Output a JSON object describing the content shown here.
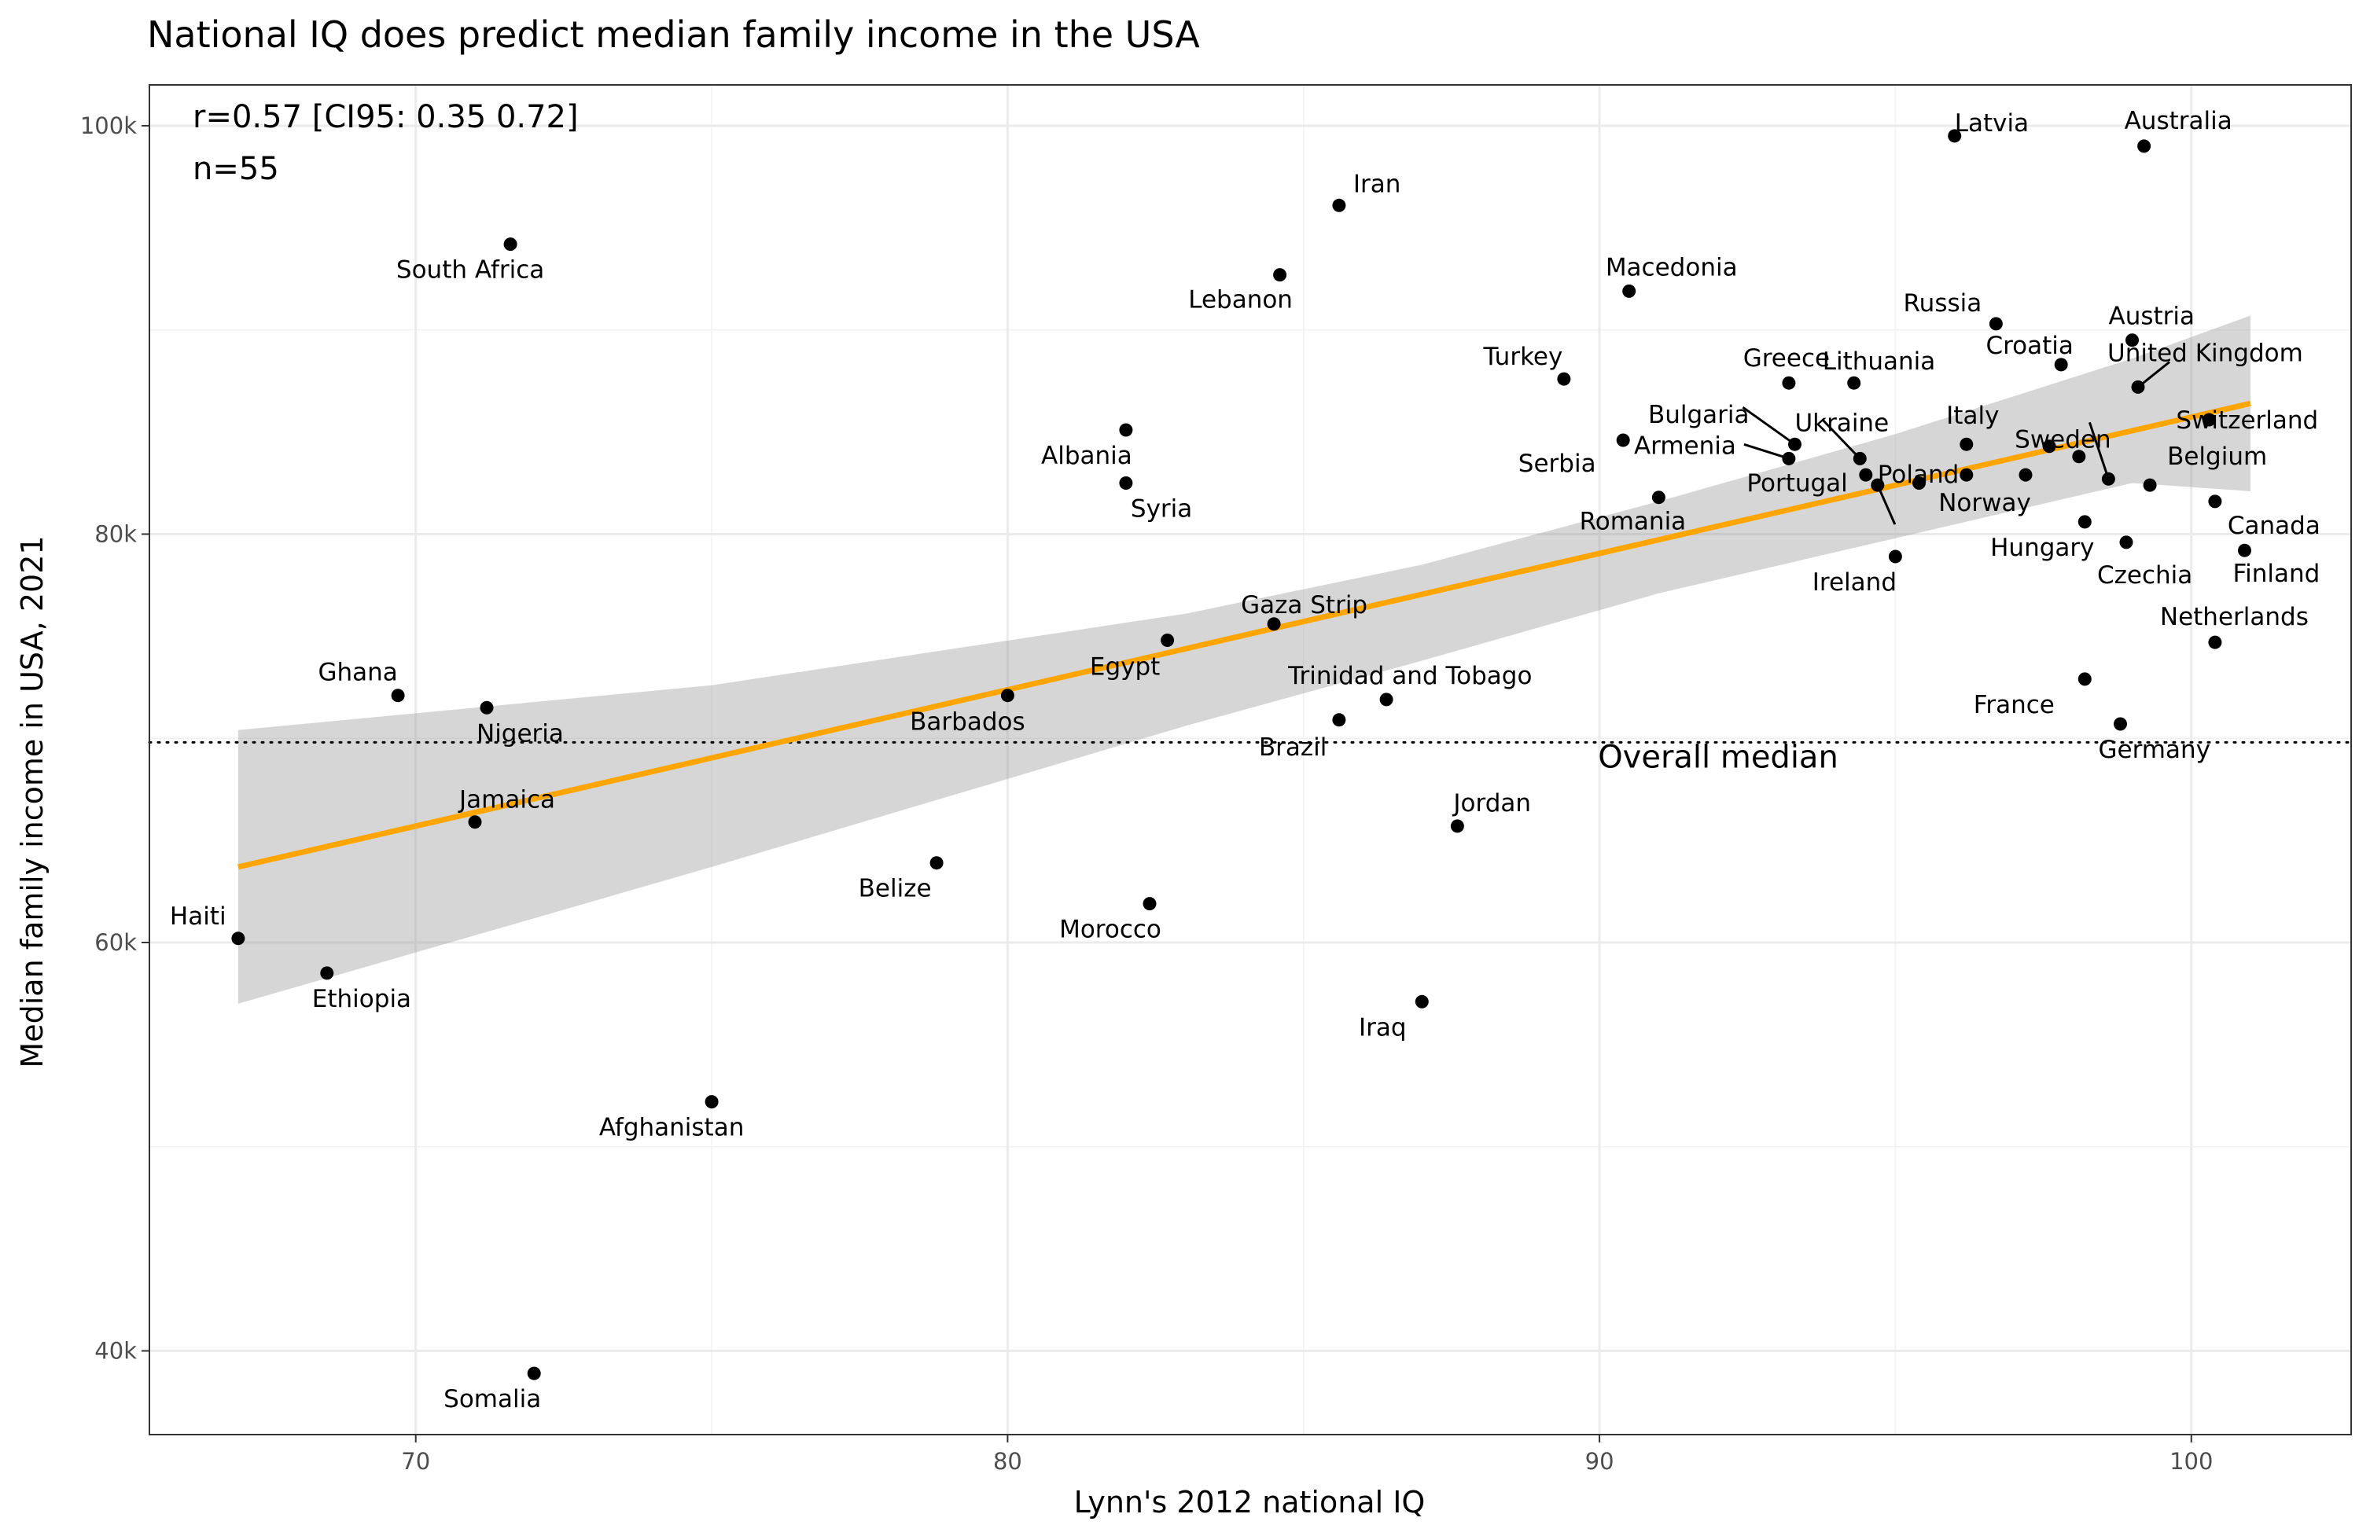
{
  "chart_data": {
    "type": "scatter",
    "title": "National IQ does predict median family income in the USA",
    "xlabel": "Lynn's 2012 national IQ",
    "ylabel": "Median family income in USA, 2021",
    "xlim": [
      65.5,
      102.7
    ],
    "ylim": [
      35900,
      102000
    ],
    "x_ticks": [
      70,
      80,
      90,
      100
    ],
    "x_tick_labels": [
      "70",
      "80",
      "90",
      "100"
    ],
    "y_ticks": [
      40000,
      60000,
      80000,
      100000
    ],
    "y_tick_labels": [
      "40k",
      "60k",
      "80k",
      "100k"
    ],
    "grid": true,
    "legend": "none",
    "annotations": [
      "r=0.57 [CI95: 0.35 0.72]",
      "n=55"
    ],
    "reference_line": {
      "y": 69800,
      "label": "Overall median",
      "style": "dotted"
    },
    "trend_line": {
      "x0": 67,
      "y0": 63700,
      "x1": 101,
      "y1": 86400,
      "color": "#FFA500"
    },
    "confidence_band": {
      "x": [
        67,
        75,
        83,
        87,
        91,
        95,
        99,
        101
      ],
      "upper": [
        70400,
        72600,
        76100,
        78500,
        81600,
        84900,
        88600,
        90700
      ],
      "lower": [
        57000,
        63700,
        70600,
        73800,
        77100,
        79800,
        82500,
        82100
      ],
      "color": "#999999"
    },
    "point_color": "#000000",
    "points": [
      {
        "name": "Latvia",
        "x": 96.0,
        "y": 99500
      },
      {
        "name": "Australia",
        "x": 99.2,
        "y": 99000
      },
      {
        "name": "Iran",
        "x": 85.6,
        "y": 96100
      },
      {
        "name": "South Africa",
        "x": 71.6,
        "y": 94200
      },
      {
        "name": "Lebanon",
        "x": 84.6,
        "y": 92700
      },
      {
        "name": "Macedonia",
        "x": 90.5,
        "y": 91900
      },
      {
        "name": "Russia",
        "x": 96.7,
        "y": 90300
      },
      {
        "name": "Austria",
        "x": 99.0,
        "y": 89500
      },
      {
        "name": "Croatia",
        "x": 97.8,
        "y": 88300
      },
      {
        "name": "Turkey",
        "x": 89.4,
        "y": 87600
      },
      {
        "name": "Greece",
        "x": 93.2,
        "y": 87400
      },
      {
        "name": "Lithuania",
        "x": 94.3,
        "y": 87400
      },
      {
        "name": "United Kingdom",
        "x": 99.1,
        "y": 87200
      },
      {
        "name": "Switzerland",
        "x": 100.3,
        "y": 85600
      },
      {
        "name": "Albania",
        "x": 82.0,
        "y": 85100
      },
      {
        "name": "Serbia",
        "x": 90.4,
        "y": 84600
      },
      {
        "name": "Bulgaria",
        "x": 93.3,
        "y": 84400
      },
      {
        "name": "Italy",
        "x": 96.2,
        "y": 84400
      },
      {
        "name": "Armenia",
        "x": 93.2,
        "y": 83700
      },
      {
        "name": "Ukraine",
        "x": 94.4,
        "y": 83700
      },
      {
        "name": "Poland",
        "x": 94.5,
        "y": 82900
      },
      {
        "name": "Norway",
        "x": 97.2,
        "y": 82900
      },
      {
        "name": "Sweden",
        "x": 98.6,
        "y": 82700
      },
      {
        "name": "Syria",
        "x": 82.0,
        "y": 82500
      },
      {
        "name": "Portugal",
        "x": 94.7,
        "y": 82400
      },
      {
        "name": "Belgium",
        "x": 99.3,
        "y": 82400
      },
      {
        "name": "Romania",
        "x": 91.0,
        "y": 81800
      },
      {
        "name": "Canada",
        "x": 100.4,
        "y": 81600
      },
      {
        "name": "Hungary",
        "x": 98.2,
        "y": 80600
      },
      {
        "name": "Czechia",
        "x": 98.9,
        "y": 79600
      },
      {
        "name": "Finland",
        "x": 100.9,
        "y": 79200
      },
      {
        "name": "Ireland",
        "x": 95.0,
        "y": 78900
      },
      {
        "name": "Netherlands",
        "x": 100.4,
        "y": 74700
      },
      {
        "name": "Gaza Strip",
        "x": 84.5,
        "y": 75600
      },
      {
        "name": "Egypt",
        "x": 82.7,
        "y": 74800
      },
      {
        "name": "France",
        "x": 98.2,
        "y": 72900
      },
      {
        "name": "Ghana",
        "x": 69.7,
        "y": 72100
      },
      {
        "name": "Barbados",
        "x": 80.0,
        "y": 72100
      },
      {
        "name": "Trinidad and Tobago",
        "x": 86.4,
        "y": 71900
      },
      {
        "name": "Nigeria",
        "x": 71.2,
        "y": 71500
      },
      {
        "name": "Brazil",
        "x": 85.6,
        "y": 70900
      },
      {
        "name": "Germany",
        "x": 98.8,
        "y": 70700
      },
      {
        "name": "Jamaica",
        "x": 71.0,
        "y": 65900
      },
      {
        "name": "Jordan",
        "x": 87.6,
        "y": 65700
      },
      {
        "name": "Belize",
        "x": 78.8,
        "y": 63900
      },
      {
        "name": "Morocco",
        "x": 82.4,
        "y": 61900
      },
      {
        "name": "Haiti",
        "x": 67.0,
        "y": 60200
      },
      {
        "name": "Ethiopia",
        "x": 68.5,
        "y": 58500
      },
      {
        "name": "Iraq",
        "x": 87.0,
        "y": 57100
      },
      {
        "name": "Afghanistan",
        "x": 75.0,
        "y": 52200
      },
      {
        "name": "Somalia",
        "x": 72.0,
        "y": 38900
      }
    ],
    "extra_marks": [
      {
        "x": 97.6,
        "y": 84300
      },
      {
        "x": 98.1,
        "y": 83800
      },
      {
        "x": 95.4,
        "y": 82500
      },
      {
        "x": 96.2,
        "y": 82900
      }
    ]
  }
}
